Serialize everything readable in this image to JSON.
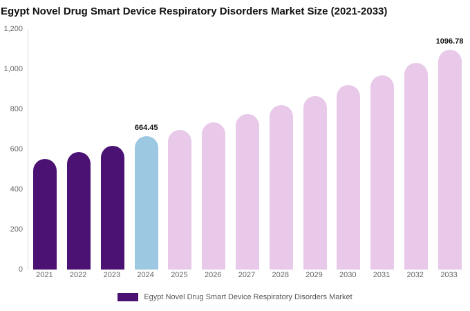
{
  "title": "Egypt Novel Drug Smart Device Respiratory Disorders Market Size (2021-2033)",
  "legend": {
    "label": "Egypt Novel Drug Smart Device Respiratory Disorders Market",
    "swatch_color": "#4b1273"
  },
  "colors": {
    "historical": "#4b1273",
    "current": "#9cc8e2",
    "forecast": "#e8c9e9",
    "axis_text": "#666666",
    "axis_line": "#d9d9d9"
  },
  "chart_data": {
    "type": "bar",
    "title": "Egypt Novel Drug Smart Device Respiratory Disorders Market Size (2021-2033)",
    "xlabel": "",
    "ylabel": "",
    "ylim": [
      0,
      1200
    ],
    "grid": false,
    "legend_position": "bottom",
    "categories": [
      "2021",
      "2022",
      "2023",
      "2024",
      "2025",
      "2026",
      "2027",
      "2028",
      "2029",
      "2030",
      "2031",
      "2032",
      "2033"
    ],
    "values": [
      550,
      585,
      618,
      664.45,
      695,
      735,
      775,
      820,
      865,
      920,
      970,
      1030,
      1096.78
    ],
    "bar_colors": [
      "#4b1273",
      "#4b1273",
      "#4b1273",
      "#9cc8e2",
      "#e8c9e9",
      "#e8c9e9",
      "#e8c9e9",
      "#e8c9e9",
      "#e8c9e9",
      "#e8c9e9",
      "#e8c9e9",
      "#e8c9e9",
      "#e8c9e9"
    ],
    "annotations": [
      {
        "category": "2024",
        "text": "664.45"
      },
      {
        "category": "2033",
        "text": "1096.78"
      }
    ],
    "yticks": [
      {
        "value": 0,
        "label": "0"
      },
      {
        "value": 200,
        "label": "200"
      },
      {
        "value": 400,
        "label": "400"
      },
      {
        "value": 600,
        "label": "600"
      },
      {
        "value": 800,
        "label": "800"
      },
      {
        "value": 1000,
        "label": "1,000"
      },
      {
        "value": 1200,
        "label": "1,200"
      }
    ]
  }
}
